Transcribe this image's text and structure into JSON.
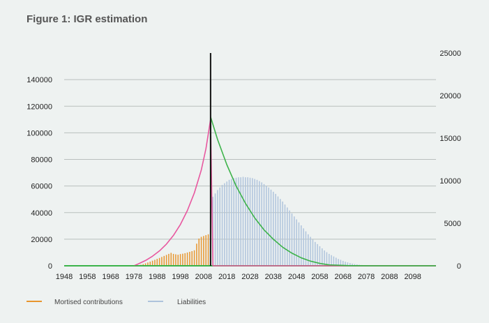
{
  "figure": {
    "title": "Figure 1: IGR estimation"
  },
  "colors": {
    "background": "#eef2f1",
    "gridline": "#b9bfbd",
    "contributions": "#e8962e",
    "liabilities": "#aec3dc",
    "pink_curve": "#e8579f",
    "green_curve": "#3db34a",
    "divider": "#111111"
  },
  "chart_data": {
    "type": "bar",
    "xlim": [
      1948,
      2108
    ],
    "x_ticks": [
      "1948",
      "1958",
      "1968",
      "1978",
      "1988",
      "1998",
      "2008",
      "2018",
      "2028",
      "2038",
      "2048",
      "2058",
      "2068",
      "2078",
      "2088",
      "2098"
    ],
    "y_left_ticks": [
      "0",
      "20000",
      "40000",
      "60000",
      "80000",
      "100000",
      "120000",
      "140000"
    ],
    "y_left_lim": [
      0,
      150000
    ],
    "y_right_ticks": [
      "0",
      "5000",
      "10000",
      "15000",
      "20000",
      "25000"
    ],
    "y_right_lim": [
      0,
      25000
    ],
    "grid": true,
    "divider_year": 2011,
    "legend_position": "bottom-left",
    "series": [
      {
        "name": "Mortised contributions",
        "kind": "bar",
        "axis": "right",
        "x": [
          1980,
          1981,
          1982,
          1983,
          1984,
          1985,
          1986,
          1987,
          1988,
          1989,
          1990,
          1991,
          1992,
          1993,
          1994,
          1995,
          1996,
          1997,
          1998,
          1999,
          2000,
          2001,
          2002,
          2003,
          2004,
          2005,
          2006,
          2007,
          2008,
          2009,
          2010
        ],
        "values": [
          60,
          120,
          200,
          290,
          390,
          490,
          600,
          700,
          810,
          920,
          1040,
          1160,
          1280,
          1400,
          1520,
          1400,
          1350,
          1300,
          1380,
          1420,
          1480,
          1560,
          1640,
          1720,
          1820,
          2600,
          3200,
          3400,
          3500,
          3600,
          3700
        ]
      },
      {
        "name": "Liabilities",
        "kind": "bar",
        "axis": "right",
        "x": [
          2011,
          2012,
          2013,
          2014,
          2015,
          2016,
          2017,
          2018,
          2019,
          2020,
          2021,
          2022,
          2023,
          2024,
          2025,
          2026,
          2027,
          2028,
          2029,
          2030,
          2031,
          2032,
          2033,
          2034,
          2035,
          2036,
          2037,
          2038,
          2039,
          2040,
          2041,
          2042,
          2043,
          2044,
          2045,
          2046,
          2047,
          2048,
          2049,
          2050,
          2051,
          2052,
          2053,
          2054,
          2055,
          2056,
          2057,
          2058,
          2059,
          2060,
          2061,
          2062,
          2063,
          2064,
          2065,
          2066,
          2067,
          2068,
          2069,
          2070,
          2071,
          2072,
          2073,
          2074,
          2075,
          2076,
          2077,
          2078,
          2079,
          2080,
          2081,
          2082,
          2083,
          2084,
          2085
        ],
        "values": [
          7600,
          8100,
          8500,
          8900,
          9200,
          9500,
          9700,
          9900,
          10100,
          10200,
          10300,
          10350,
          10400,
          10400,
          10450,
          10400,
          10400,
          10350,
          10300,
          10200,
          10100,
          9950,
          9800,
          9600,
          9400,
          9200,
          8950,
          8700,
          8450,
          8150,
          7850,
          7550,
          7200,
          6850,
          6500,
          6150,
          5800,
          5450,
          5100,
          4750,
          4400,
          4050,
          3700,
          3400,
          3100,
          2800,
          2550,
          2300,
          2050,
          1800,
          1600,
          1400,
          1250,
          1100,
          950,
          800,
          700,
          580,
          480,
          400,
          320,
          260,
          200,
          160,
          120,
          90,
          70,
          50,
          35,
          25,
          18,
          12,
          8,
          5,
          3
        ]
      },
      {
        "kind": "line",
        "axis": "left",
        "color_key": "pink_curve",
        "x": [
          1978,
          1980,
          1983,
          1986,
          1989,
          1992,
          1995,
          1998,
          2001,
          2004,
          2007,
          2009,
          2011,
          2012,
          2020,
          2040,
          2060,
          2080,
          2100,
          2108
        ],
        "values": [
          0,
          1500,
          4000,
          7200,
          11200,
          16300,
          22800,
          31000,
          41500,
          54700,
          72000,
          88000,
          110000,
          0,
          0,
          0,
          0,
          0,
          0,
          0
        ]
      },
      {
        "kind": "line",
        "axis": "left",
        "color_key": "green_curve",
        "x": [
          1948,
          1978,
          2000,
          2011,
          2011,
          2014,
          2018,
          2022,
          2026,
          2030,
          2034,
          2038,
          2042,
          2046,
          2050,
          2054,
          2058,
          2062,
          2070,
          2080,
          2090,
          2100,
          2108
        ],
        "values": [
          0,
          0,
          0,
          0,
          112000,
          95000,
          76000,
          60000,
          47000,
          36000,
          27000,
          20000,
          14000,
          9500,
          6000,
          3500,
          1800,
          700,
          150,
          0,
          0,
          0,
          0
        ]
      }
    ]
  }
}
